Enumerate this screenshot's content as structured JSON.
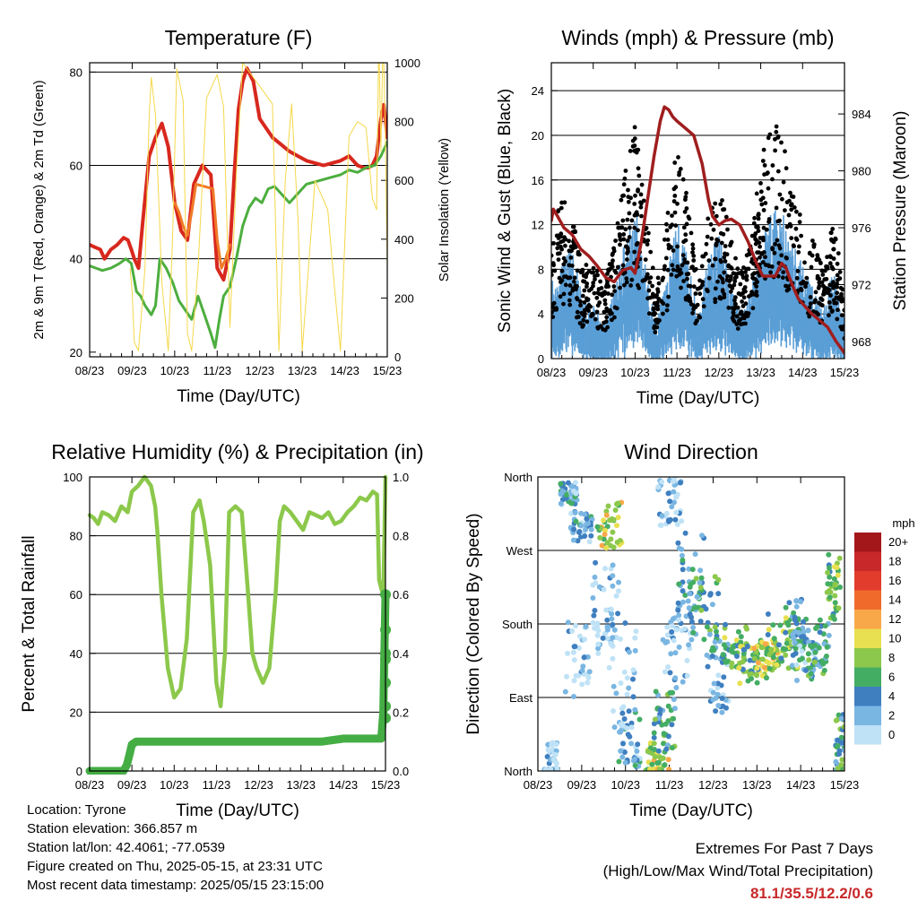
{
  "colors": {
    "temp_red": "#d8281e",
    "temp_orange": "#f07a28",
    "dewpoint_green": "#4cae3e",
    "solar_yellow": "#f5d84a",
    "wind_blue": "#5a9ed6",
    "gust_black": "#000000",
    "pressure_maroon": "#a01e1e",
    "rh_green": "#8cc84b",
    "rain_green": "#44ad44",
    "extremes_red": "#c8282a"
  },
  "chart_data": [
    {
      "id": "temperature",
      "type": "line",
      "title": "Temperature (F)",
      "xlabel": "Time (Day/UTC)",
      "ylabel": "2m & 9m T (Red, Orange) & 2m Td (Green)",
      "y2label": "Solar Insolation (Yellow)",
      "x_ticks": [
        "08/23",
        "09/23",
        "10/23",
        "11/23",
        "12/23",
        "13/23",
        "14/23",
        "15/23"
      ],
      "xlim": [
        0,
        7
      ],
      "ylim": [
        19,
        82
      ],
      "y_ticks": [
        "20",
        "40",
        "60",
        "80"
      ],
      "y2lim": [
        0,
        1000
      ],
      "y2_ticks": [
        "0",
        "200",
        "400",
        "600",
        "800",
        "1000"
      ],
      "grid_y": [
        40,
        60,
        80
      ],
      "series": [
        {
          "color": "#d8281e",
          "x": [
            0,
            0.12,
            0.25,
            0.35,
            0.5,
            0.65,
            0.8,
            0.9,
            0.98,
            1.05,
            1.15,
            1.25,
            1.4,
            1.55,
            1.7,
            1.85,
            2.0,
            2.15,
            2.3,
            2.45,
            2.65,
            2.85,
            3.0,
            3.15,
            3.3,
            3.4,
            3.5,
            3.6,
            3.7,
            3.85,
            4.0,
            4.15,
            4.3,
            4.5,
            4.7,
            4.9,
            5.1,
            5.3,
            5.5,
            5.7,
            5.9,
            6.1,
            6.3,
            6.45,
            6.55,
            6.65,
            6.75,
            6.85,
            6.92,
            7.0
          ],
          "y": [
            43,
            42.5,
            42,
            40,
            42,
            43,
            44.5,
            44,
            42,
            40,
            38,
            48,
            62,
            66,
            69,
            64,
            52,
            46,
            44,
            56,
            60,
            58,
            38,
            35.5,
            42,
            58,
            72,
            78,
            80.8,
            78,
            70,
            68,
            66,
            64.5,
            63,
            62,
            61,
            60.5,
            60,
            60.5,
            61,
            62,
            60,
            59.5,
            59.5,
            60,
            62,
            70,
            73,
            66
          ]
        },
        {
          "color": "#f07a28",
          "x": [
            2.0,
            2.1,
            2.2,
            2.3,
            2.4,
            2.5,
            2.9,
            3.0,
            3.1,
            3.2,
            3.3
          ],
          "y": [
            52,
            50,
            47,
            45,
            50,
            56,
            55,
            44,
            38,
            40,
            43
          ]
        },
        {
          "color": "#4cae3e",
          "x": [
            0,
            0.15,
            0.3,
            0.5,
            0.7,
            0.85,
            0.98,
            1.1,
            1.2,
            1.3,
            1.45,
            1.55,
            1.65,
            1.8,
            1.95,
            2.1,
            2.25,
            2.4,
            2.55,
            2.7,
            2.85,
            2.95,
            3.05,
            3.15,
            3.3,
            3.45,
            3.6,
            3.75,
            3.9,
            4.05,
            4.2,
            4.35,
            4.5,
            4.7,
            4.9,
            5.1,
            5.3,
            5.5,
            5.7,
            5.9,
            6.1,
            6.3,
            6.5,
            6.7,
            6.85,
            7.0
          ],
          "y": [
            38.5,
            38,
            37.5,
            38,
            39,
            40,
            39,
            33,
            32,
            30,
            28,
            30,
            40,
            38,
            35,
            31,
            29,
            27,
            32,
            28,
            24,
            21,
            27,
            32,
            34,
            40,
            47,
            51,
            53,
            52,
            55,
            55.5,
            54,
            52,
            54,
            56,
            56.5,
            57,
            57.5,
            58,
            59,
            58.5,
            59.5,
            60,
            62,
            65
          ]
        },
        {
          "color": "#f5d84a",
          "axis": "y2",
          "x": [
            0.95,
            1.0,
            1.05,
            1.15,
            1.3,
            1.4,
            1.45,
            1.55,
            1.7,
            1.85,
            1.95,
            2.05,
            2.2,
            2.3,
            2.4,
            2.55,
            2.75,
            3.0,
            3.15,
            3.3,
            3.45,
            3.6,
            4.3,
            4.45,
            4.6,
            4.75,
            4.9,
            5.0,
            5.3,
            5.6,
            5.75,
            5.9,
            6.1,
            6.3,
            6.5,
            6.65,
            6.75,
            6.8,
            6.85,
            6.9,
            6.95,
            7.0
          ],
          "y": [
            300,
            220,
            50,
            20,
            300,
            820,
            950,
            820,
            250,
            20,
            400,
            980,
            870,
            80,
            20,
            300,
            880,
            960,
            850,
            100,
            620,
            1000,
            860,
            20,
            600,
            860,
            470,
            20,
            600,
            500,
            250,
            20,
            750,
            800,
            780,
            540,
            500,
            1090,
            700,
            1100,
            800,
            300
          ]
        }
      ]
    },
    {
      "id": "winds",
      "type": "scatter",
      "title": "Winds (mph) & Pressure (mb)",
      "xlabel": "Time (Day/UTC)",
      "ylabel": "Sonic Wind & Gust (Blue, Black)",
      "y2label": "Station Pressure (Maroon)",
      "x_ticks": [
        "08/23",
        "09/23",
        "10/23",
        "11/23",
        "12/23",
        "13/23",
        "14/23",
        "15/23"
      ],
      "xlim": [
        0,
        7
      ],
      "ylim": [
        0,
        26.5
      ],
      "y_ticks": [
        "0",
        "4",
        "8",
        "12",
        "16",
        "20",
        "24"
      ],
      "y2lim": [
        966.8,
        987.6
      ],
      "y2_ticks": [
        "968",
        "972",
        "976",
        "980",
        "984"
      ],
      "grid_y": [
        4,
        8,
        12,
        16,
        20,
        24
      ],
      "wind_envelope": [
        [
          0,
          7
        ],
        [
          0.25,
          8
        ],
        [
          0.5,
          10
        ],
        [
          0.75,
          5
        ],
        [
          1.0,
          5
        ],
        [
          1.25,
          3
        ],
        [
          1.5,
          6
        ],
        [
          1.75,
          10
        ],
        [
          2.0,
          14
        ],
        [
          2.25,
          8
        ],
        [
          2.5,
          3
        ],
        [
          2.75,
          7
        ],
        [
          3.0,
          12
        ],
        [
          3.25,
          9
        ],
        [
          3.5,
          4
        ],
        [
          3.75,
          9
        ],
        [
          4.0,
          11
        ],
        [
          4.25,
          7
        ],
        [
          4.5,
          4
        ],
        [
          4.75,
          6
        ],
        [
          5.0,
          10
        ],
        [
          5.25,
          14
        ],
        [
          5.5,
          13
        ],
        [
          5.75,
          10
        ],
        [
          6.0,
          8
        ],
        [
          6.25,
          7
        ],
        [
          6.5,
          5
        ],
        [
          6.75,
          8
        ],
        [
          7.0,
          3
        ]
      ],
      "gust_envelope": [
        [
          0,
          10
        ],
        [
          0.25,
          14
        ],
        [
          0.5,
          12
        ],
        [
          0.75,
          8
        ],
        [
          1.0,
          9
        ],
        [
          1.25,
          6
        ],
        [
          1.5,
          10
        ],
        [
          1.75,
          16
        ],
        [
          2.0,
          20
        ],
        [
          2.25,
          13
        ],
        [
          2.5,
          6
        ],
        [
          2.75,
          12
        ],
        [
          3.0,
          18
        ],
        [
          3.25,
          14
        ],
        [
          3.5,
          7
        ],
        [
          3.75,
          13
        ],
        [
          4.0,
          15
        ],
        [
          4.25,
          11
        ],
        [
          4.5,
          7
        ],
        [
          4.75,
          10
        ],
        [
          5.0,
          17
        ],
        [
          5.25,
          21
        ],
        [
          5.5,
          19
        ],
        [
          5.75,
          15
        ],
        [
          6.0,
          12
        ],
        [
          6.25,
          10
        ],
        [
          6.5,
          8
        ],
        [
          6.75,
          12
        ],
        [
          7.0,
          5
        ]
      ],
      "pressure": {
        "color": "#a01e1e",
        "x": [
          0,
          0.05,
          0.15,
          0.3,
          0.5,
          0.7,
          0.9,
          1.1,
          1.3,
          1.5,
          1.7,
          1.9,
          2.0,
          2.15,
          2.3,
          2.45,
          2.6,
          2.7,
          2.8,
          2.9,
          3.0,
          3.2,
          3.4,
          3.6,
          3.75,
          3.85,
          4.0,
          4.15,
          4.3,
          4.5,
          4.7,
          4.9,
          5.05,
          5.2,
          5.35,
          5.5,
          5.6,
          5.75,
          5.9,
          6.05,
          6.2,
          6.4,
          6.6,
          6.8,
          7.0
        ],
        "y": [
          976.5,
          977.3,
          976.8,
          976,
          975.5,
          974.5,
          974,
          973.3,
          972.5,
          972.2,
          973,
          973.2,
          972.8,
          975,
          978,
          981,
          983.5,
          984.5,
          984.3,
          983.8,
          983.5,
          983,
          982.5,
          980.5,
          978,
          976.8,
          976.2,
          976.5,
          976.6,
          976.2,
          975,
          973.5,
          972.6,
          972.6,
          972.6,
          973.5,
          973.2,
          972,
          971,
          970.5,
          970,
          969.5,
          969,
          968,
          967.2
        ]
      }
    },
    {
      "id": "rh_precip",
      "type": "line",
      "title": "Relative Humidity (%) & Precipitation (in)",
      "xlabel": "Time (Day/UTC)",
      "ylabel": "Percent & Total Rainfall",
      "x_ticks": [
        "08/23",
        "09/23",
        "10/23",
        "11/23",
        "12/23",
        "13/23",
        "14/23",
        "15/23"
      ],
      "xlim": [
        0,
        7
      ],
      "ylim": [
        0,
        100
      ],
      "y_ticks": [
        "0",
        "20",
        "40",
        "60",
        "80",
        "100"
      ],
      "y2lim": [
        0,
        1.0
      ],
      "y2_ticks": [
        "0.0",
        "0.2",
        "0.4",
        "0.6",
        "0.8",
        "1.0"
      ],
      "grid_y": [
        20,
        40,
        60,
        80
      ],
      "series": [
        {
          "name": "",
          "color": "#8cc84b",
          "x": [
            0,
            0.1,
            0.2,
            0.3,
            0.45,
            0.6,
            0.75,
            0.9,
            1.0,
            1.15,
            1.3,
            1.45,
            1.55,
            1.6,
            1.7,
            1.85,
            2.0,
            2.15,
            2.3,
            2.45,
            2.6,
            2.7,
            2.85,
            3.0,
            3.1,
            3.2,
            3.3,
            3.45,
            3.6,
            3.75,
            3.85,
            3.95,
            4.1,
            4.25,
            4.4,
            4.5,
            4.6,
            4.75,
            4.9,
            5.05,
            5.2,
            5.35,
            5.5,
            5.65,
            5.8,
            5.95,
            6.1,
            6.25,
            6.4,
            6.55,
            6.7,
            6.8,
            6.85,
            6.9,
            6.95,
            7.0
          ],
          "y": [
            87,
            86,
            84,
            88,
            87,
            85,
            90,
            88,
            95,
            97,
            100,
            97,
            90,
            82,
            60,
            35,
            25,
            28,
            45,
            88,
            92,
            85,
            70,
            30,
            22,
            40,
            88,
            90,
            88,
            60,
            40,
            35,
            30,
            35,
            60,
            85,
            90,
            88,
            85,
            82,
            88,
            87,
            86,
            88,
            84,
            85,
            88,
            90,
            93,
            92,
            95,
            94,
            65,
            62,
            60,
            100
          ]
        },
        {
          "name": "",
          "color": "#44ad44",
          "axis": "y2",
          "x": [
            0,
            0.3,
            0.6,
            0.8,
            0.88,
            0.95,
            1.0,
            1.1,
            2.0,
            3.0,
            4.0,
            5.0,
            5.5,
            6.0,
            6.5,
            6.9,
            6.95,
            7.0
          ],
          "y": [
            0.0,
            0.0,
            0.0,
            0.0,
            0.02,
            0.06,
            0.09,
            0.1,
            0.1,
            0.1,
            0.1,
            0.1,
            0.1,
            0.11,
            0.11,
            0.11,
            0.2,
            0.6
          ]
        }
      ],
      "rain_dots_y2": [
        0.6,
        0.48,
        0.4,
        0.38,
        0.3,
        0.22,
        0.18
      ]
    },
    {
      "id": "wind_direction",
      "type": "scatter",
      "title": "Wind Direction",
      "xlabel": "Time (Day/UTC)",
      "ylabel": "Direction (Colored By Speed)",
      "x_ticks": [
        "08/23",
        "09/23",
        "10/23",
        "11/23",
        "12/23",
        "13/23",
        "14/23",
        "15/23"
      ],
      "xlim": [
        0,
        7
      ],
      "y_ticks": [
        "North",
        "East",
        "South",
        "West",
        "North"
      ],
      "ylim": [
        0,
        360
      ],
      "legend": {
        "title": "mph",
        "labels": [
          "20+",
          "18",
          "16",
          "14",
          "12",
          "10",
          "8",
          "6",
          "4",
          "2",
          "0"
        ],
        "colors": [
          "#a3171a",
          "#c8282a",
          "#e13c2c",
          "#f06a2c",
          "#f8a848",
          "#e8e050",
          "#8cc84b",
          "#44ad64",
          "#3f7fc0",
          "#7ab6e2",
          "#bfe2f6"
        ]
      },
      "clusters": [
        [
          0.3,
          10,
          25,
          0.3,
          1
        ],
        [
          0.7,
          340,
          15,
          0.4,
          2
        ],
        [
          1.0,
          300,
          20,
          0.5,
          2
        ],
        [
          1.65,
          300,
          30,
          0.6,
          5
        ],
        [
          1.0,
          140,
          50,
          0.8,
          1
        ],
        [
          1.55,
          200,
          60,
          0.6,
          1
        ],
        [
          2.1,
          40,
          35,
          0.5,
          2
        ],
        [
          2.7,
          20,
          25,
          0.6,
          5
        ],
        [
          2.9,
          60,
          40,
          0.5,
          3
        ],
        [
          3.2,
          150,
          50,
          0.7,
          1
        ],
        [
          3.5,
          240,
          60,
          0.6,
          2
        ],
        [
          3.8,
          200,
          40,
          0.7,
          3
        ],
        [
          4.1,
          120,
          50,
          0.5,
          2
        ],
        [
          4.5,
          150,
          30,
          0.6,
          4
        ],
        [
          4.9,
          130,
          25,
          0.8,
          4
        ],
        [
          5.2,
          140,
          20,
          0.6,
          5
        ],
        [
          5.6,
          160,
          35,
          0.7,
          4
        ],
        [
          5.9,
          180,
          30,
          0.5,
          3
        ],
        [
          6.1,
          140,
          30,
          0.6,
          2
        ],
        [
          6.4,
          150,
          35,
          0.5,
          3
        ],
        [
          6.75,
          225,
          40,
          0.3,
          4
        ],
        [
          6.9,
          30,
          40,
          0.2,
          3
        ],
        [
          1.9,
          120,
          80,
          0.7,
          1
        ],
        [
          3.0,
          330,
          30,
          0.6,
          1
        ]
      ]
    }
  ],
  "footer": {
    "location": "Location: Tyrone",
    "elevation": "Station elevation: 366.857 m",
    "latlon": "Station lat/lon: 42.4061; -77.0539",
    "created": "Figure created on Thu, 2025-05-15, at 23:31 UTC",
    "recent": "Most recent data timestamp: 2025/05/15 23:15:00"
  },
  "extremes": {
    "title": "Extremes For Past 7 Days",
    "subtitle": "(High/Low/Max Wind/Total Precipitation)",
    "values": "81.1/35.5/12.2/0.6"
  }
}
